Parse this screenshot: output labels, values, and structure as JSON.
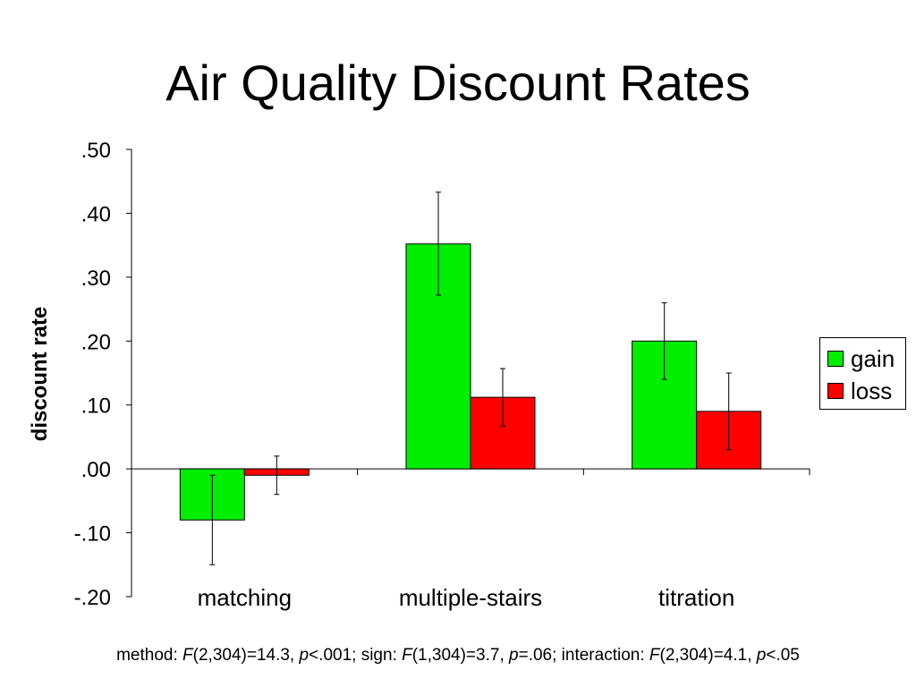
{
  "chart_data": {
    "type": "bar",
    "title": "Air Quality Discount Rates",
    "ylabel": "discount rate",
    "xlabel": "",
    "categories": [
      "matching",
      "multiple-stairs",
      "titration"
    ],
    "series": [
      {
        "name": "gain",
        "color": "#00EE00",
        "values": [
          -0.08,
          0.352,
          0.2
        ],
        "error_low": [
          -0.15,
          0.272,
          0.14
        ],
        "error_high": [
          -0.01,
          0.433,
          0.26
        ]
      },
      {
        "name": "loss",
        "color": "#FF0000",
        "values": [
          -0.01,
          0.112,
          0.09
        ],
        "error_low": [
          -0.04,
          0.067,
          0.03
        ],
        "error_high": [
          0.02,
          0.157,
          0.15
        ]
      }
    ],
    "ylim": [
      -0.2,
      0.5
    ],
    "yticks": [
      0.5,
      0.4,
      0.3,
      0.2,
      0.1,
      0.0,
      -0.1,
      -0.2
    ],
    "ytick_labels": [
      ".50",
      ".40",
      ".30",
      ".20",
      ".10",
      ".00",
      "-.10",
      "-.20"
    ],
    "grid": false,
    "legend_position": "right"
  },
  "footnote": {
    "p1": "method: ",
    "p2": "F",
    "p3": "(2,304)=14.3, ",
    "p4": "p",
    "p5": "<.001; sign: ",
    "p6": "F",
    "p7": "(1,304)=3.7, ",
    "p8": "p",
    "p9": "=.06; interaction: ",
    "p10": "F",
    "p11": "(2,304)=4.1, ",
    "p12": "p",
    "p13": "<.05"
  }
}
